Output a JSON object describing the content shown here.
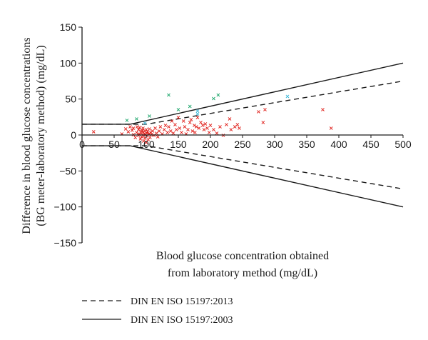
{
  "chart_data": {
    "type": "scatter",
    "xlabel": [
      "Blood glucose concentration obtained",
      "from laboratory method (mg/dL)"
    ],
    "ylabel": [
      "Difference in blood glucose concentrations",
      "(BG meter-laboratory method) (mg/dL)"
    ],
    "xlim": [
      0,
      500
    ],
    "ylim": [
      -150,
      150
    ],
    "xticks": [
      0,
      50,
      100,
      150,
      200,
      250,
      300,
      350,
      400,
      450,
      500
    ],
    "yticks": [
      -150,
      -100,
      -50,
      0,
      50,
      100,
      150
    ],
    "grid": false,
    "legend_position": "bottom",
    "legend": [
      {
        "label": "DIN EN ISO 15197:2013",
        "style": "dashed"
      },
      {
        "label": "DIN EN ISO 15197:2003",
        "style": "solid"
      }
    ],
    "limit_lines": [
      {
        "name": "DIN EN ISO 15197:2013",
        "style": "dashed",
        "upper": [
          [
            0,
            15
          ],
          [
            100,
            15
          ],
          [
            500,
            75
          ]
        ],
        "lower": [
          [
            0,
            -15
          ],
          [
            100,
            -15
          ],
          [
            500,
            -75
          ]
        ]
      },
      {
        "name": "DIN EN ISO 15197:2003",
        "style": "solid",
        "upper": [
          [
            0,
            15
          ],
          [
            75,
            15
          ],
          [
            500,
            100
          ]
        ],
        "lower": [
          [
            0,
            -15
          ],
          [
            75,
            -15
          ],
          [
            500,
            -100
          ]
        ]
      }
    ],
    "marker_symbol": "×",
    "series": [
      {
        "color": "#e0201b",
        "points": [
          [
            18,
            5
          ],
          [
            62,
            2
          ],
          [
            68,
            9
          ],
          [
            72,
            5
          ],
          [
            75,
            12
          ],
          [
            78,
            7
          ],
          [
            80,
            1
          ],
          [
            80,
            10
          ],
          [
            83,
            -3
          ],
          [
            85,
            4
          ],
          [
            86,
            12
          ],
          [
            88,
            8
          ],
          [
            88,
            0
          ],
          [
            89,
            2
          ],
          [
            90,
            11
          ],
          [
            91,
            -5
          ],
          [
            92,
            6
          ],
          [
            92,
            3
          ],
          [
            93,
            -2
          ],
          [
            94,
            7
          ],
          [
            95,
            0
          ],
          [
            95,
            10
          ],
          [
            96,
            4
          ],
          [
            96,
            -8
          ],
          [
            97,
            2
          ],
          [
            98,
            -4
          ],
          [
            98,
            6
          ],
          [
            99,
            1
          ],
          [
            100,
            -10
          ],
          [
            100,
            8
          ],
          [
            101,
            3
          ],
          [
            101,
            -1
          ],
          [
            102,
            5
          ],
          [
            103,
            -6
          ],
          [
            104,
            2
          ],
          [
            105,
            9
          ],
          [
            106,
            -3
          ],
          [
            107,
            4
          ],
          [
            108,
            1
          ],
          [
            110,
            6
          ],
          [
            112,
            0
          ],
          [
            114,
            10
          ],
          [
            116,
            3
          ],
          [
            118,
            -2
          ],
          [
            120,
            6
          ],
          [
            122,
            12
          ],
          [
            125,
            2
          ],
          [
            128,
            8
          ],
          [
            130,
            14
          ],
          [
            133,
            4
          ],
          [
            135,
            12
          ],
          [
            138,
            6
          ],
          [
            140,
            20
          ],
          [
            142,
            3
          ],
          [
            145,
            15
          ],
          [
            147,
            8
          ],
          [
            150,
            25
          ],
          [
            152,
            10
          ],
          [
            155,
            4
          ],
          [
            158,
            20
          ],
          [
            160,
            12
          ],
          [
            162,
            2
          ],
          [
            165,
            8
          ],
          [
            168,
            18
          ],
          [
            170,
            22
          ],
          [
            172,
            6
          ],
          [
            175,
            14
          ],
          [
            176,
            4
          ],
          [
            178,
            12
          ],
          [
            180,
            25
          ],
          [
            182,
            10
          ],
          [
            185,
            18
          ],
          [
            188,
            14
          ],
          [
            190,
            8
          ],
          [
            192,
            16
          ],
          [
            195,
            10
          ],
          [
            198,
            4
          ],
          [
            200,
            14
          ],
          [
            205,
            8
          ],
          [
            210,
            3
          ],
          [
            215,
            12
          ],
          [
            220,
            0
          ],
          [
            225,
            15
          ],
          [
            230,
            23
          ],
          [
            232,
            8
          ],
          [
            238,
            12
          ],
          [
            242,
            15
          ],
          [
            245,
            10
          ],
          [
            275,
            33
          ],
          [
            282,
            18
          ],
          [
            285,
            36
          ],
          [
            375,
            36
          ],
          [
            388,
            10
          ]
        ]
      },
      {
        "color": "#1aa56a",
        "points": [
          [
            70,
            21
          ],
          [
            85,
            23
          ],
          [
            105,
            27
          ],
          [
            135,
            56
          ],
          [
            150,
            36
          ],
          [
            168,
            40
          ],
          [
            205,
            51
          ],
          [
            212,
            56
          ]
        ]
      },
      {
        "color": "#38b7d8",
        "points": [
          [
            98,
            17
          ],
          [
            180,
            30
          ],
          [
            180,
            34
          ],
          [
            320,
            54
          ]
        ]
      }
    ]
  }
}
